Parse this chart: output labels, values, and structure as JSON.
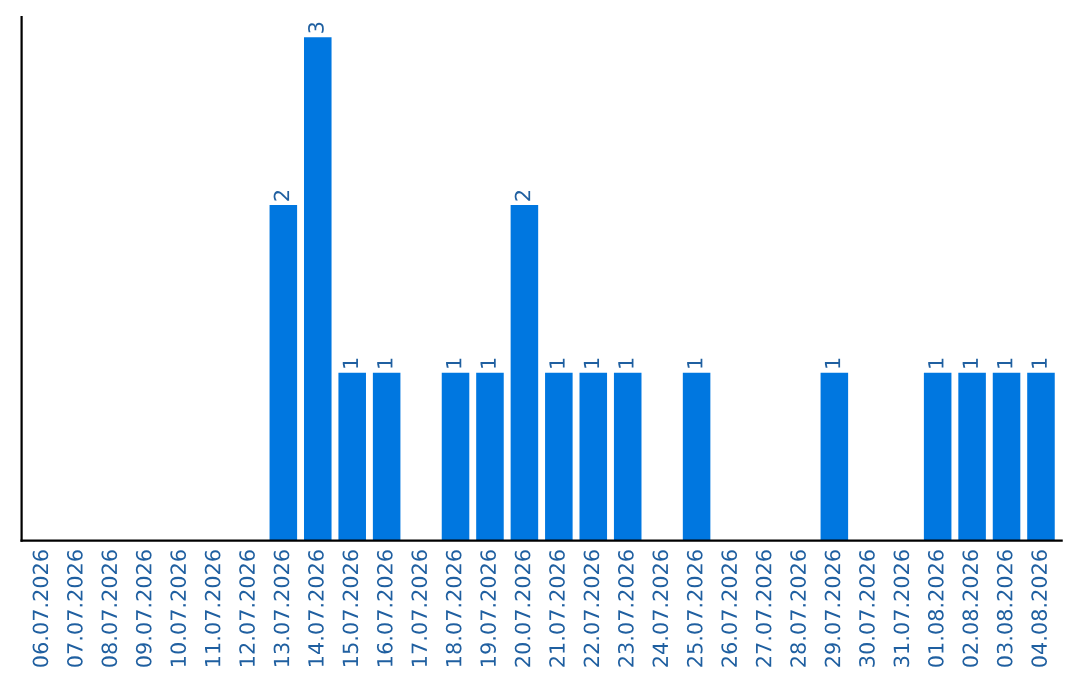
{
  "chart_data": {
    "type": "bar",
    "categories": [
      "06.07.2026",
      "07.07.2026",
      "08.07.2026",
      "09.07.2026",
      "10.07.2026",
      "11.07.2026",
      "12.07.2026",
      "13.07.2026",
      "14.07.2026",
      "15.07.2026",
      "16.07.2026",
      "17.07.2026",
      "18.07.2026",
      "19.07.2026",
      "20.07.2026",
      "21.07.2026",
      "22.07.2026",
      "23.07.2026",
      "24.07.2026",
      "25.07.2026",
      "26.07.2026",
      "27.07.2026",
      "28.07.2026",
      "29.07.2026",
      "30.07.2026",
      "31.07.2026",
      "01.08.2026",
      "02.08.2026",
      "03.08.2026",
      "04.08.2026"
    ],
    "values": [
      0,
      0,
      0,
      0,
      0,
      0,
      0,
      2,
      3,
      1,
      1,
      0,
      1,
      1,
      2,
      1,
      1,
      1,
      0,
      1,
      0,
      0,
      0,
      1,
      0,
      0,
      1,
      1,
      1,
      1
    ],
    "value_labels": [
      null,
      null,
      null,
      null,
      null,
      null,
      null,
      "2",
      "3",
      "1",
      "1",
      null,
      "1",
      "1",
      "2",
      "1",
      "1",
      "1",
      null,
      "1",
      null,
      null,
      null,
      "1",
      null,
      null,
      "1",
      "1",
      "1",
      "1"
    ],
    "color": "#0077e0",
    "ylim": [
      0,
      3.12
    ],
    "tick_labels": "x",
    "grid": false,
    "legend": false
  }
}
